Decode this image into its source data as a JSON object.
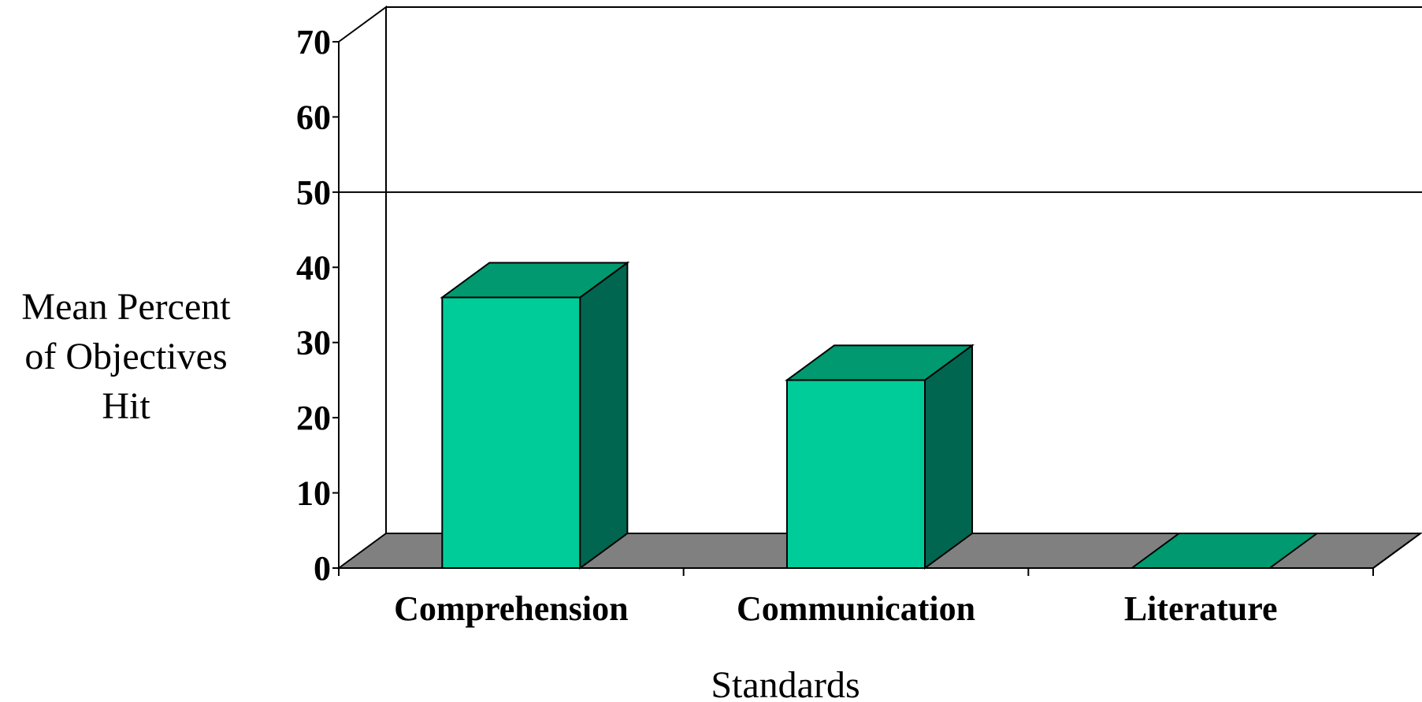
{
  "chart_data": {
    "type": "bar",
    "categories": [
      "Comprehension",
      "Communication",
      "Literature"
    ],
    "values": [
      36,
      25,
      0
    ],
    "xlabel": "Standards",
    "ylabel": [
      "Mean Percent",
      "of Objectives",
      "Hit"
    ],
    "ylim": [
      0,
      70
    ],
    "yticks": [
      "0",
      "10",
      "20",
      "30",
      "40",
      "50",
      "60",
      "70"
    ],
    "reference_line": 50,
    "three_d": true,
    "grid": false,
    "colors": {
      "bar_front": "#00CC99",
      "bar_top": "#009970",
      "bar_side": "#006650",
      "floor": "#808080",
      "wall": "#ffffff",
      "line": "#000000"
    }
  }
}
